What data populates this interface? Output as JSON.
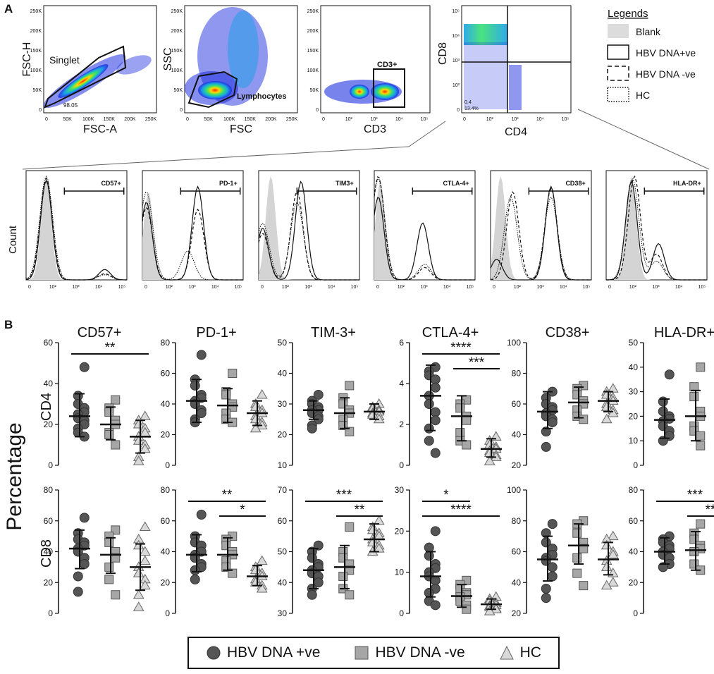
{
  "panels": {
    "a": "A",
    "b": "B"
  },
  "gating": [
    {
      "id": "fsc",
      "xlabel": "FSC-A",
      "ylabel": "FSC-H",
      "gate_label": "Singlet",
      "stat": "98.05",
      "xticks": [
        "0",
        "50K",
        "100K",
        "150K",
        "200K",
        "250K"
      ],
      "yticks": [
        "0",
        "50K",
        "100K",
        "150K",
        "200K",
        "250K"
      ]
    },
    {
      "id": "ssc",
      "xlabel": "FSC",
      "ylabel": "SSC",
      "gate_label": "Lymphocytes",
      "xticks": [
        "0",
        "50K",
        "100K",
        "150K",
        "200K",
        "250K"
      ],
      "yticks": [
        "0",
        "50K",
        "100K",
        "150K",
        "200K",
        "250K"
      ]
    },
    {
      "id": "cd3",
      "xlabel": "CD3",
      "ylabel": "",
      "gate_label": "CD3+",
      "xticks": [
        "0",
        "10²",
        "10³",
        "10⁴",
        "10⁵"
      ],
      "yticks": [
        "0",
        "50K",
        "100K",
        "150K",
        "200K",
        "250K"
      ]
    },
    {
      "id": "cd4cd8",
      "xlabel": "CD4",
      "ylabel": "CD8",
      "q3": "0.4",
      "q3b": "13.4%",
      "xticks": [
        "0",
        "10²",
        "10³",
        "10⁴",
        "10⁵"
      ],
      "yticks": [
        "0",
        "10²",
        "10³",
        "10⁴",
        "10⁵"
      ]
    }
  ],
  "legend_a": {
    "title": "Legends",
    "items": [
      {
        "label": "Blank",
        "style": "fill"
      },
      {
        "label": "HBV DNA+ve",
        "style": "solid"
      },
      {
        "label": "HBV DNA -ve",
        "style": "dashed"
      },
      {
        "label": "HC",
        "style": "dotted"
      }
    ]
  },
  "histograms": {
    "ylabel": "Count",
    "xticks": [
      "0",
      "10²",
      "10³",
      "10⁴",
      "10⁵"
    ],
    "gates": [
      "CD57+",
      "PD-1+",
      "TIM3+",
      "CTLA-4+",
      "CD38+",
      "HLA-DR+"
    ]
  },
  "chart_data": {
    "type": "scatter",
    "ylabel": "Percentage",
    "row_labels": [
      "CD4",
      "CD8"
    ],
    "markers": [
      "CD57+",
      "PD-1+",
      "TIM-3+",
      "CTLA-4+",
      "CD38+",
      "HLA-DR+"
    ],
    "groups": [
      "HBV DNA +ve",
      "HBV DNA -ve",
      "HC"
    ],
    "colors": {
      "pos": "#555555",
      "neg": "#a6a6a6",
      "hc": "#d9d9d9",
      "sig": "#e8211d",
      "ns": "#111111"
    },
    "rows": [
      [
        {
          "ylim": [
            0,
            60
          ],
          "yticks": [
            "0",
            "20",
            "40",
            "60"
          ],
          "means": [
            24,
            20,
            14
          ],
          "sd_hi": [
            35,
            28.5,
            22
          ],
          "sd_lo": [
            14,
            12.5,
            6
          ],
          "points": [
            [
              48,
              34,
              30,
              28,
              26,
              25,
              23,
              22,
              20,
              18,
              16,
              14
            ],
            [
              32,
              28,
              26,
              22,
              20,
              16,
              15,
              10
            ],
            [
              24,
              22,
              20,
              18,
              16,
              14,
              12,
              10,
              8,
              4,
              2
            ]
          ],
          "sig": [
            {
              "from": 0,
              "to": 2,
              "label": "**",
              "red": true
            }
          ]
        },
        {
          "ylim": [
            0,
            80
          ],
          "yticks": [
            "0",
            "20",
            "40",
            "60",
            "80"
          ],
          "means": [
            42,
            39,
            34
          ],
          "sd_hi": [
            56,
            50,
            42
          ],
          "sd_lo": [
            28,
            28,
            26
          ],
          "points": [
            [
              72,
              56,
              52,
              46,
              44,
              42,
              40,
              36,
              34,
              30,
              28
            ],
            [
              60,
              48,
              46,
              40,
              38,
              34,
              30,
              28
            ],
            [
              46,
              40,
              38,
              36,
              34,
              32,
              30,
              28,
              26,
              24
            ]
          ],
          "sig": []
        },
        {
          "ylim": [
            10,
            50
          ],
          "yticks": [
            "10",
            "20",
            "30",
            "40",
            "50"
          ],
          "means": [
            28,
            27,
            27.5
          ],
          "sd_hi": [
            31,
            32,
            30
          ],
          "sd_lo": [
            25,
            22,
            25
          ],
          "points": [
            [
              33,
              31,
              30,
              29,
              28,
              28,
              27,
              26,
              25,
              23,
              22
            ],
            [
              36,
              32,
              30,
              28,
              27,
              25,
              23,
              21
            ],
            [
              30,
              29,
              28.5,
              28,
              27.5,
              27,
              26.5,
              26,
              25
            ]
          ],
          "sig": []
        },
        {
          "ylim": [
            0,
            6
          ],
          "yticks": [
            "0",
            "2",
            "4",
            "6"
          ],
          "means": [
            3.4,
            2.4,
            0.8
          ],
          "sd_hi": [
            4.9,
            3.4,
            1.3
          ],
          "sd_lo": [
            1.7,
            1.2,
            0.4
          ],
          "points": [
            [
              4.8,
              4.6,
              4.4,
              4.2,
              3.8,
              3.4,
              3.0,
              2.6,
              2.2,
              1.8,
              1.2,
              0.6
            ],
            [
              3.2,
              3.0,
              2.8,
              2.4,
              2.2,
              1.6,
              1.2,
              1.0
            ],
            [
              1.4,
              1.2,
              1.0,
              0.9,
              0.8,
              0.7,
              0.6,
              0.5,
              0.4,
              0.2
            ]
          ],
          "sig": [
            {
              "from": 0,
              "to": 2,
              "label": "****",
              "red": true
            },
            {
              "from": 1,
              "to": 2,
              "label": "***",
              "red": true
            }
          ]
        },
        {
          "ylim": [
            20,
            100
          ],
          "yticks": [
            "20",
            "40",
            "60",
            "80",
            "100"
          ],
          "means": [
            55,
            61,
            62
          ],
          "sd_hi": [
            68,
            71,
            68
          ],
          "sd_lo": [
            44,
            51,
            55
          ],
          "points": [
            [
              68,
              64,
              60,
              58,
              56,
              54,
              52,
              50,
              48,
              42,
              32
            ],
            [
              72,
              70,
              66,
              62,
              60,
              56,
              52,
              50
            ],
            [
              70,
              68,
              66,
              64,
              62,
              60,
              58,
              56,
              54,
              50
            ]
          ],
          "sig": []
        },
        {
          "ylim": [
            0,
            50
          ],
          "yticks": [
            "0",
            "10",
            "20",
            "30",
            "40",
            "50"
          ],
          "means": [
            18.5,
            20,
            12
          ],
          "sd_hi": [
            27,
            30.5,
            18
          ],
          "sd_lo": [
            11,
            10,
            7
          ],
          "points": [
            [
              37,
              26,
              22,
              20,
              19,
              18,
              16,
              14,
              12,
              10
            ],
            [
              40,
              32,
              28,
              22,
              20,
              16,
              14,
              12,
              8
            ],
            [
              22,
              18,
              16,
              14,
              12,
              11,
              10,
              8,
              7,
              6
            ]
          ],
          "sig": []
        }
      ],
      [
        {
          "ylim": [
            0,
            80
          ],
          "yticks": [
            "0",
            "20",
            "40",
            "60",
            "80"
          ],
          "means": [
            42,
            38,
            30
          ],
          "sd_hi": [
            54,
            49,
            45
          ],
          "sd_lo": [
            29,
            26,
            15
          ],
          "points": [
            [
              62,
              52,
              48,
              46,
              44,
              42,
              40,
              36,
              32,
              24,
              14
            ],
            [
              54,
              50,
              46,
              40,
              36,
              30,
              22,
              12
            ],
            [
              56,
              48,
              44,
              40,
              34,
              30,
              26,
              22,
              18,
              12,
              4
            ]
          ],
          "sig": []
        },
        {
          "ylim": [
            0,
            80
          ],
          "yticks": [
            "0",
            "20",
            "40",
            "60",
            "80"
          ],
          "means": [
            38,
            38,
            24
          ],
          "sd_hi": [
            51,
            49,
            31
          ],
          "sd_lo": [
            27,
            28,
            18
          ],
          "points": [
            [
              64,
              50,
              46,
              44,
              40,
              38,
              36,
              32,
              30,
              28,
              22
            ],
            [
              50,
              48,
              44,
              40,
              38,
              34,
              30,
              26
            ],
            [
              34,
              30,
              28,
              26,
              24,
              22,
              20,
              18,
              16
            ]
          ],
          "sig": [
            {
              "from": 0,
              "to": 2,
              "label": "**",
              "red": true
            },
            {
              "from": 1,
              "to": 2,
              "label": "*",
              "red": false
            }
          ]
        },
        {
          "ylim": [
            30,
            70
          ],
          "yticks": [
            "30",
            "40",
            "50",
            "60",
            "70"
          ],
          "means": [
            44,
            45,
            54
          ],
          "sd_hi": [
            51,
            52,
            59
          ],
          "sd_lo": [
            38,
            38,
            50
          ],
          "points": [
            [
              52,
              50,
              48,
              46,
              45,
              44,
              43,
              42,
              40,
              38,
              36
            ],
            [
              58,
              50,
              48,
              46,
              44,
              42,
              38,
              36
            ],
            [
              60,
              58,
              57,
              56,
              55,
              54,
              53,
              52,
              51,
              50
            ]
          ],
          "sig": [
            {
              "from": 0,
              "to": 2,
              "label": "***",
              "red": true
            },
            {
              "from": 1,
              "to": 2,
              "label": "**",
              "red": true
            }
          ]
        },
        {
          "ylim": [
            0,
            30
          ],
          "yticks": [
            "0",
            "10",
            "20",
            "30"
          ],
          "means": [
            9,
            4.2,
            2.2
          ],
          "sd_hi": [
            15,
            7,
            3.5
          ],
          "sd_lo": [
            4,
            1.5,
            1
          ],
          "points": [
            [
              20,
              16,
              14,
              12,
              11,
              10,
              9,
              8,
              6,
              5,
              3,
              2
            ],
            [
              8,
              7,
              6,
              5,
              4.5,
              4,
              3,
              2,
              1
            ],
            [
              4,
              3.5,
              3,
              2.5,
              2,
              1.8,
              1.5,
              1.2,
              1,
              0.5
            ]
          ],
          "sig": [
            {
              "from": 0,
              "to": 1,
              "label": "*",
              "red": false
            },
            {
              "from": 0,
              "to": 2,
              "label": "****",
              "red": true
            }
          ]
        },
        {
          "ylim": [
            20,
            100
          ],
          "yticks": [
            "20",
            "40",
            "60",
            "80",
            "100"
          ],
          "means": [
            55,
            64,
            55
          ],
          "sd_hi": [
            70,
            78,
            66
          ],
          "sd_lo": [
            41,
            52,
            45
          ],
          "points": [
            [
              78,
              72,
              66,
              62,
              58,
              56,
              54,
              50,
              44,
              36,
              30
            ],
            [
              80,
              78,
              72,
              66,
              62,
              56,
              46,
              38
            ],
            [
              70,
              68,
              64,
              60,
              58,
              54,
              50,
              46,
              40,
              38
            ]
          ],
          "sig": []
        },
        {
          "ylim": [
            0,
            80
          ],
          "yticks": [
            "0",
            "20",
            "40",
            "60",
            "80"
          ],
          "means": [
            40,
            41,
            21
          ],
          "sd_hi": [
            49,
            53,
            32
          ],
          "sd_lo": [
            32,
            28,
            13
          ],
          "points": [
            [
              50,
              48,
              46,
              44,
              42,
              40,
              38,
              36,
              32,
              30
            ],
            [
              58,
              52,
              48,
              44,
              42,
              40,
              32,
              28
            ],
            [
              30,
              28,
              26,
              24,
              22,
              20,
              18,
              16,
              14,
              10,
              8
            ]
          ],
          "sig": [
            {
              "from": 0,
              "to": 2,
              "label": "***",
              "red": true
            },
            {
              "from": 1,
              "to": 2,
              "label": "**",
              "red": true
            }
          ]
        }
      ]
    ]
  }
}
